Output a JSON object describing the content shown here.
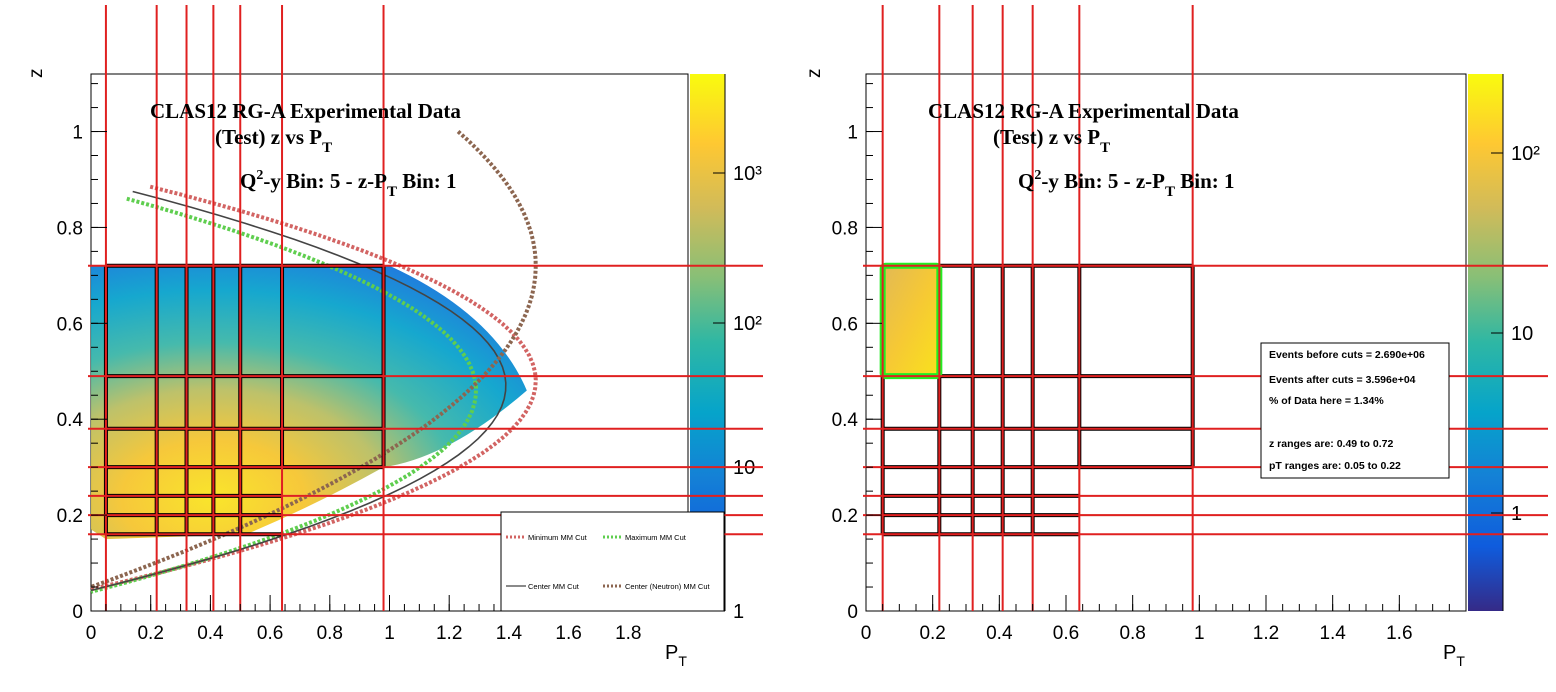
{
  "chart_data": [
    {
      "type": "heatmap",
      "title": "CLAS12 RG-A Experimental Data",
      "subtitle_prefix": "(Test) z vs P",
      "subtitle_sub": "T",
      "bin_line": {
        "a": "Q",
        "a_sup": "2",
        "b": "-y Bin: 5 - z-P",
        "b_sub": "T",
        "c": " Bin: 1"
      },
      "xlabel": "P",
      "xlabel_sub": "T",
      "ylabel": "z",
      "xlim": [
        0,
        2.0
      ],
      "ylim": [
        0,
        1.12
      ],
      "x_ticks": [
        "0",
        "0.2",
        "0.4",
        "0.6",
        "0.8",
        "1",
        "1.2",
        "1.4",
        "1.6",
        "1.8"
      ],
      "y_ticks": [
        "0",
        "0.2",
        "0.4",
        "0.6",
        "0.8",
        "1"
      ],
      "colorbar": {
        "scale": "log",
        "labels": [
          "1",
          "10",
          "10²",
          "10³"
        ]
      },
      "pt_bin_edges": [
        0.05,
        0.22,
        0.32,
        0.41,
        0.5,
        0.64,
        0.98
      ],
      "z_bin_edges": [
        0.16,
        0.2,
        0.24,
        0.3,
        0.38,
        0.49,
        0.72
      ],
      "legend": {
        "items": [
          {
            "label": "Minimum MM Cut",
            "color": "#d26463",
            "style": "dotted"
          },
          {
            "label": "Maximum MM Cut",
            "color": "#5fce4f",
            "style": "dotted"
          },
          {
            "label": "Center MM Cut",
            "color": "#444444",
            "style": "solid"
          },
          {
            "label": "Center (Neutron) MM Cut",
            "color": "#8c6650",
            "style": "dotted"
          }
        ]
      },
      "curves": {
        "minimum": {
          "z0": 0.885,
          "apex_pt": 1.49,
          "apex_z": 0.48,
          "z1": 0.045
        },
        "maximum": {
          "z0": 0.86,
          "apex_pt": 1.29,
          "apex_z": 0.46,
          "z1": 0.04
        },
        "center": {
          "z0": 0.875,
          "apex_pt": 1.39,
          "apex_z": 0.47,
          "z1": 0.043
        },
        "neutron": {
          "z0": 1.0,
          "apex_pt": 1.49,
          "apex_z": 0.72,
          "z1": 0.05
        }
      }
    },
    {
      "type": "heatmap",
      "title": "CLAS12 RG-A Experimental Data",
      "subtitle_prefix": "(Test) z vs P",
      "subtitle_sub": "T",
      "bin_line": {
        "a": "Q",
        "a_sup": "2",
        "b": "-y Bin: 5 - z-P",
        "b_sub": "T",
        "c": " Bin: 1"
      },
      "xlabel": "P",
      "xlabel_sub": "T",
      "ylabel": "z",
      "xlim": [
        0,
        1.8
      ],
      "ylim": [
        0,
        1.12
      ],
      "x_ticks": [
        "0",
        "0.2",
        "0.4",
        "0.6",
        "0.8",
        "1",
        "1.2",
        "1.4",
        "1.6"
      ],
      "y_ticks": [
        "0",
        "0.2",
        "0.4",
        "0.6",
        "0.8",
        "1"
      ],
      "colorbar": {
        "scale": "log",
        "labels": [
          "1",
          "10",
          "10²"
        ]
      },
      "selected_bin": {
        "pt": [
          0.05,
          0.22
        ],
        "z": [
          0.49,
          0.72
        ]
      },
      "stats": [
        "Events before cuts = 2.690e+06",
        "Events after cuts  = 3.596e+04",
        "% of Data here = 1.34%",
        "z   ranges are: 0.49 to 0.72",
        "pT ranges are: 0.05 to 0.22"
      ]
    }
  ]
}
